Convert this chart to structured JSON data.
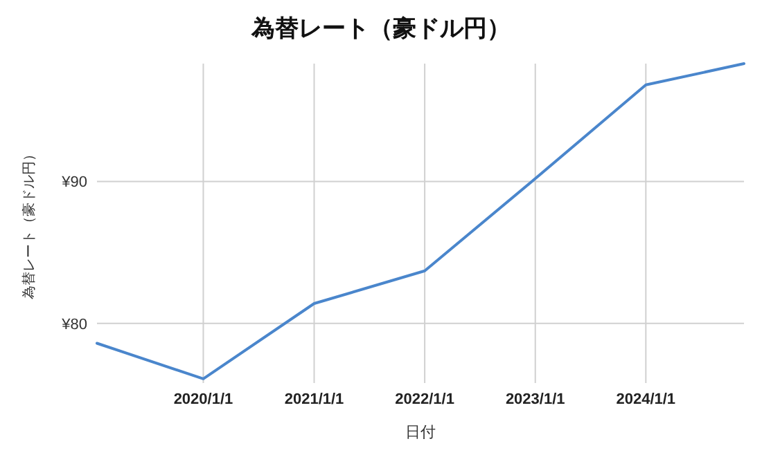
{
  "chart_data": {
    "type": "line",
    "title": "為替レート（豪ドル円）",
    "xlabel": "日付",
    "ylabel": "為替レート（豪ドル円）",
    "x": [
      "2019-01-15",
      "2020-01-01",
      "2021-01-01",
      "2022-01-01",
      "2023-01-01",
      "2024-01-01",
      "2024-11-20"
    ],
    "series": [
      {
        "color": "#4a86cc",
        "values": [
          78.6,
          76.1,
          81.4,
          83.7,
          90.2,
          96.8,
          98.3
        ]
      }
    ],
    "xlim": [
      "2019-01-15",
      "2024-11-20"
    ],
    "ylim": [
      75.8,
      98.3
    ],
    "xticks": [
      {
        "value": "2020-01-01",
        "label": "2020/1/1"
      },
      {
        "value": "2021-01-01",
        "label": "2021/1/1"
      },
      {
        "value": "2022-01-01",
        "label": "2022/1/1"
      },
      {
        "value": "2023-01-01",
        "label": "2023/1/1"
      },
      {
        "value": "2024-01-01",
        "label": "2024/1/1"
      }
    ],
    "yticks": [
      {
        "value": 80,
        "label": "¥80"
      },
      {
        "value": 90,
        "label": "¥90"
      }
    ],
    "grid": true
  }
}
